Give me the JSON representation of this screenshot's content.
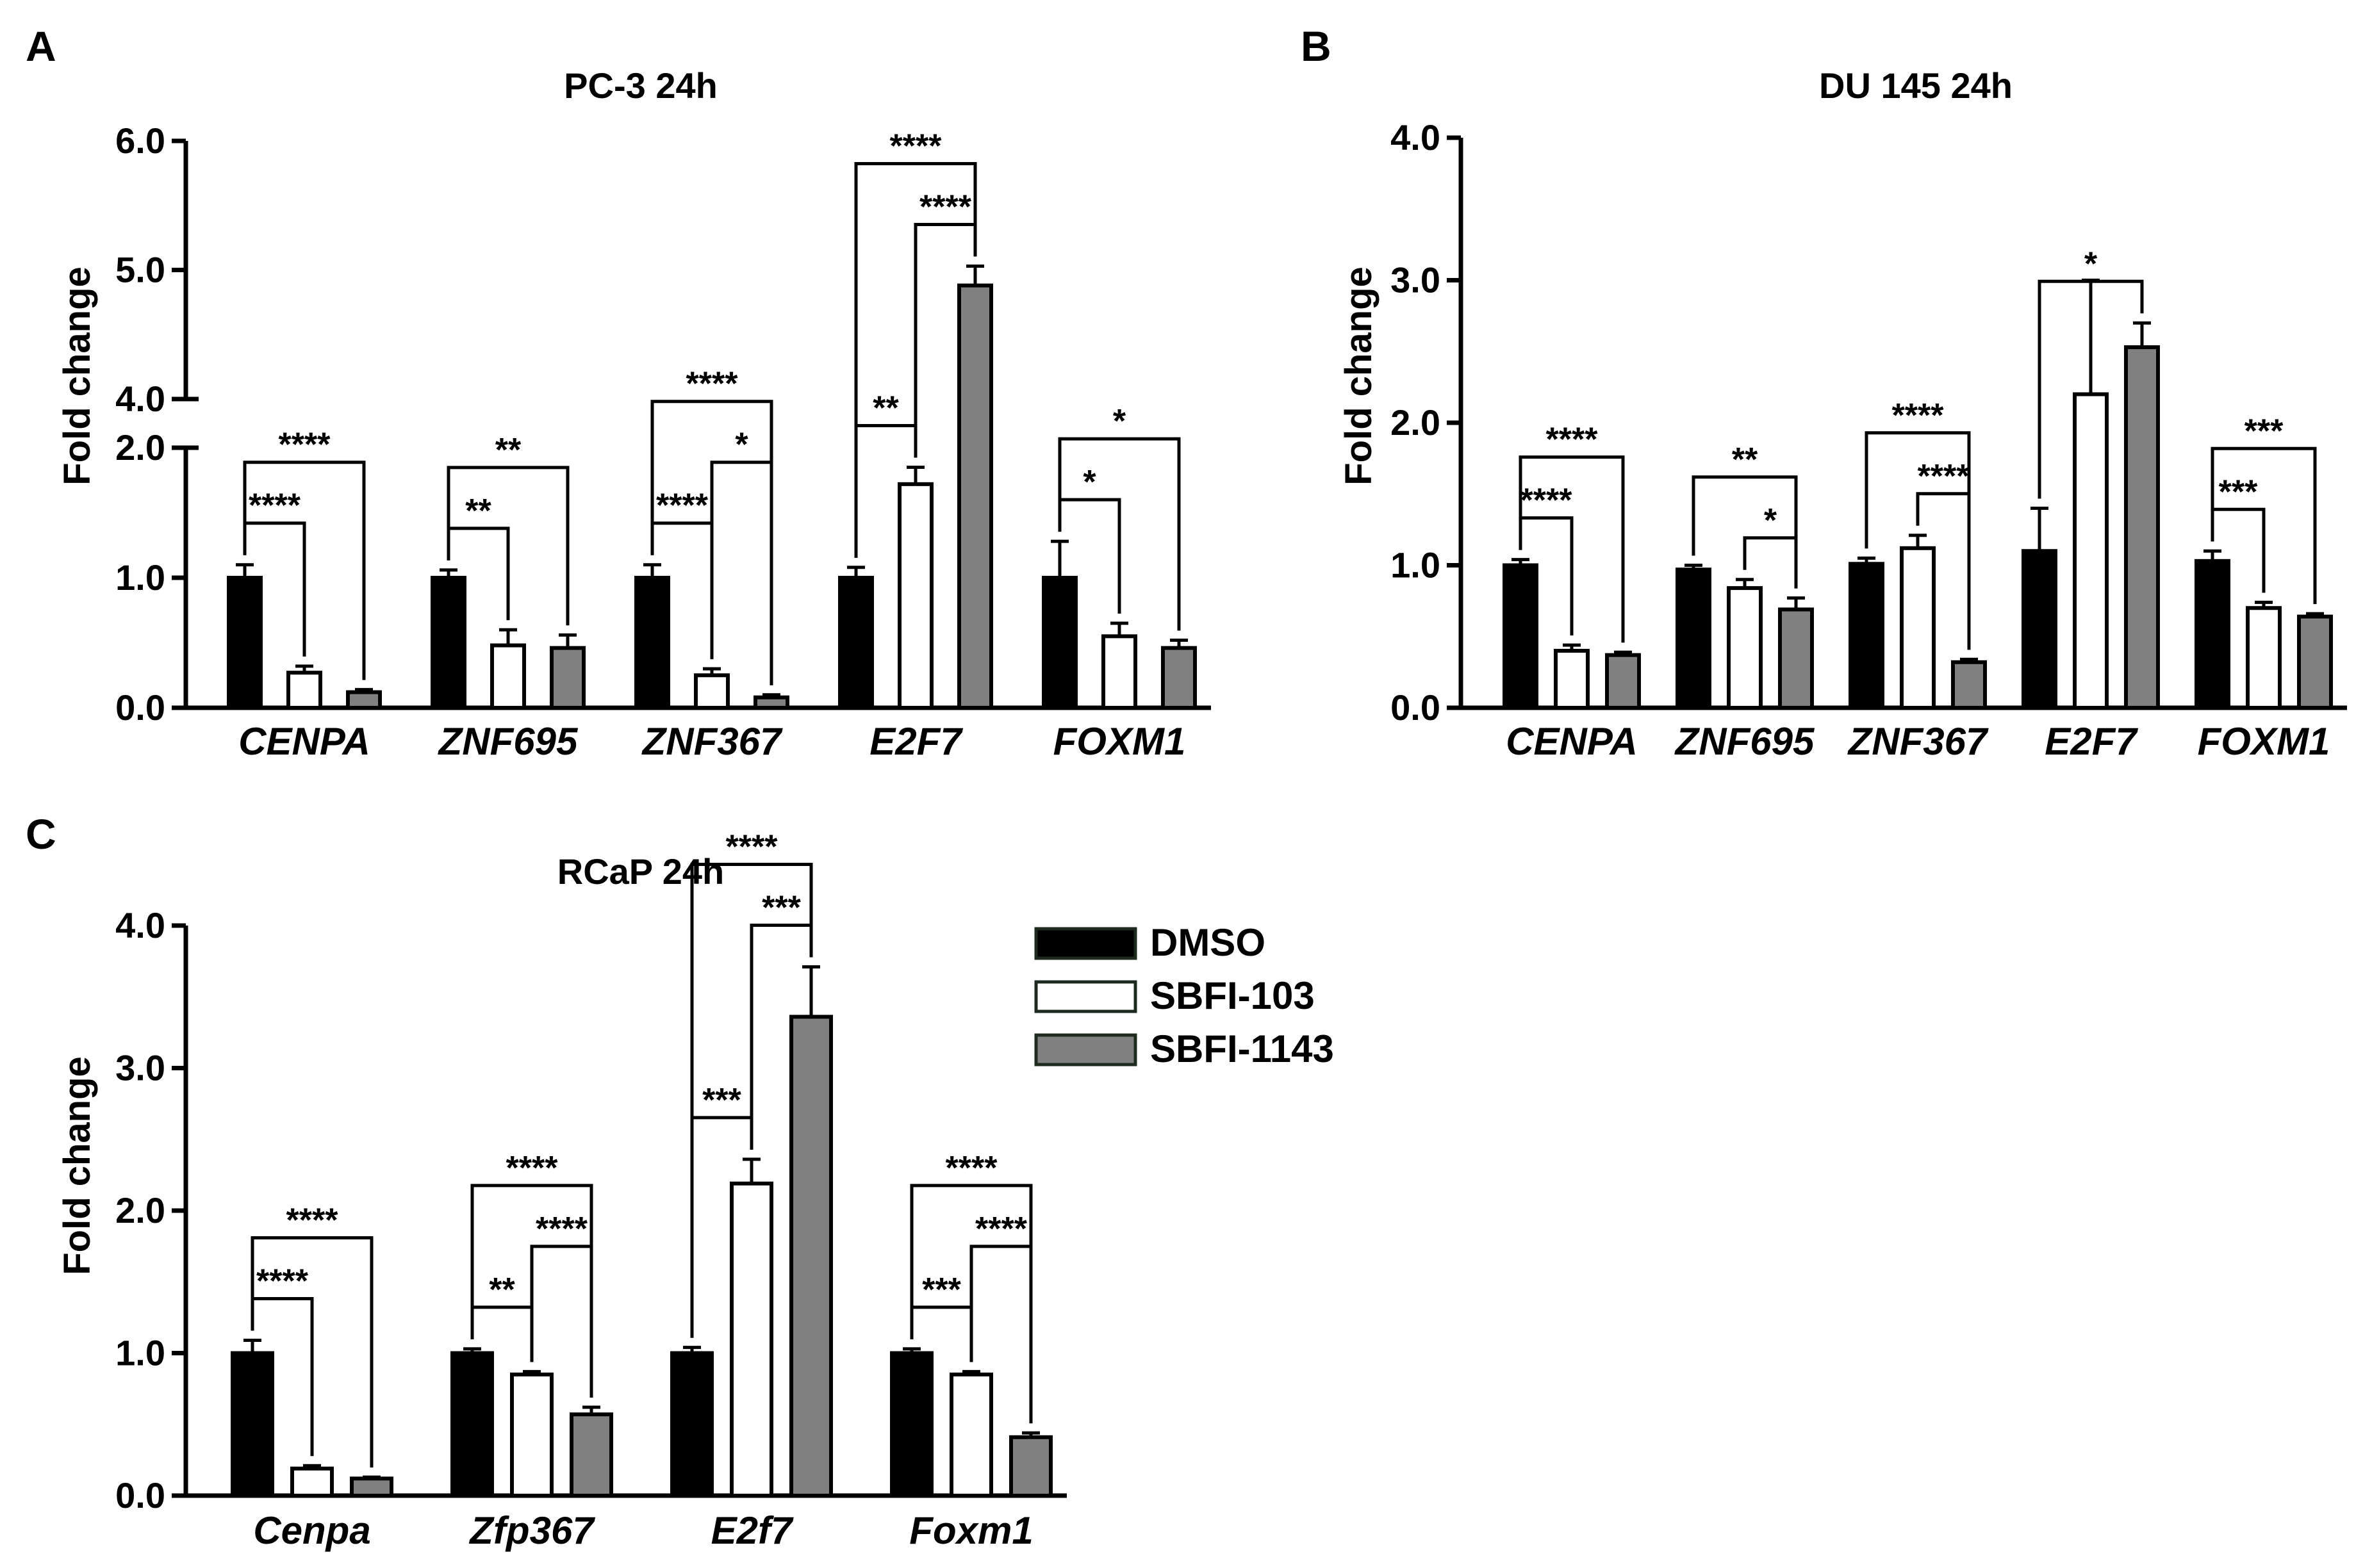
{
  "panels": [
    {
      "id": "A",
      "label": "A",
      "title": "PC-3 24h",
      "ylabel": "Fold change",
      "chart_type": "bar",
      "categories": [
        "CENPA",
        "ZNF695",
        "ZNF367",
        "E2F7",
        "FOXM1"
      ],
      "y_ticks": [
        "0.0",
        "1.0",
        "2.0",
        "4.0",
        "5.0",
        "6.0"
      ]
    },
    {
      "id": "B",
      "label": "B",
      "title": "DU 145 24h",
      "ylabel": "Fold change",
      "chart_type": "bar",
      "categories": [
        "CENPA",
        "ZNF695",
        "ZNF367",
        "E2F7",
        "FOXM1"
      ],
      "y_ticks": [
        "0.0",
        "1.0",
        "2.0",
        "3.0",
        "4.0"
      ]
    },
    {
      "id": "C",
      "label": "C",
      "title": "RCaP 24h",
      "ylabel": "Fold change",
      "chart_type": "bar",
      "categories": [
        "Cenpa",
        "Zfp367",
        "E2f7",
        "Foxm1"
      ],
      "y_ticks": [
        "0.0",
        "1.0",
        "2.0",
        "3.0",
        "4.0"
      ]
    }
  ],
  "legend": {
    "items": [
      {
        "label": "DMSO",
        "color": "#000000"
      },
      {
        "label": "SBFI-103",
        "color": "#ffffff"
      },
      {
        "label": "SBFI-1143",
        "color": "#808080"
      }
    ]
  },
  "colors": {
    "DMSO": "#000000",
    "SBFI-103": "#ffffff",
    "SBFI-1143": "#808080",
    "axis": "#000000"
  },
  "chart_data": [
    {
      "panel": "A",
      "type": "bar",
      "title": "PC-3 24h",
      "ylabel": "Fold change",
      "xlabel": "",
      "categories": [
        "CENPA",
        "ZNF695",
        "ZNF367",
        "E2F7",
        "FOXM1"
      ],
      "y_axis_break": {
        "from": 2.0,
        "to": 4.0
      },
      "ylim": [
        0,
        6
      ],
      "series": [
        {
          "name": "DMSO",
          "values": [
            1.0,
            1.0,
            1.0,
            1.0,
            1.0
          ],
          "errors": [
            0.1,
            0.06,
            0.1,
            0.08,
            0.28
          ]
        },
        {
          "name": "SBFI-103",
          "values": [
            0.27,
            0.48,
            0.25,
            1.72,
            0.55
          ],
          "errors": [
            0.05,
            0.12,
            0.05,
            0.13,
            0.1
          ]
        },
        {
          "name": "SBFI-1143",
          "values": [
            0.12,
            0.46,
            0.08,
            4.88,
            0.46
          ],
          "errors": [
            0.02,
            0.1,
            0.02,
            0.15,
            0.06
          ]
        }
      ],
      "significance": [
        {
          "category": "CENPA",
          "pair": [
            "DMSO",
            "SBFI-103"
          ],
          "label": "****"
        },
        {
          "category": "CENPA",
          "pair": [
            "DMSO",
            "SBFI-1143"
          ],
          "label": "****"
        },
        {
          "category": "ZNF695",
          "pair": [
            "DMSO",
            "SBFI-103"
          ],
          "label": "**"
        },
        {
          "category": "ZNF695",
          "pair": [
            "DMSO",
            "SBFI-1143"
          ],
          "label": "**"
        },
        {
          "category": "ZNF367",
          "pair": [
            "DMSO",
            "SBFI-103"
          ],
          "label": "****"
        },
        {
          "category": "ZNF367",
          "pair": [
            "DMSO",
            "SBFI-1143"
          ],
          "label": "****"
        },
        {
          "category": "ZNF367",
          "pair": [
            "SBFI-103",
            "SBFI-1143"
          ],
          "label": "*"
        },
        {
          "category": "E2F7",
          "pair": [
            "DMSO",
            "SBFI-103"
          ],
          "label": "**"
        },
        {
          "category": "E2F7",
          "pair": [
            "DMSO",
            "SBFI-1143"
          ],
          "label": "****"
        },
        {
          "category": "E2F7",
          "pair": [
            "SBFI-103",
            "SBFI-1143"
          ],
          "label": "****"
        },
        {
          "category": "FOXM1",
          "pair": [
            "DMSO",
            "SBFI-103"
          ],
          "label": "*"
        },
        {
          "category": "FOXM1",
          "pair": [
            "DMSO",
            "SBFI-1143"
          ],
          "label": "*"
        }
      ]
    },
    {
      "panel": "B",
      "type": "bar",
      "title": "DU 145 24h",
      "ylabel": "Fold change",
      "xlabel": "",
      "categories": [
        "CENPA",
        "ZNF695",
        "ZNF367",
        "E2F7",
        "FOXM1"
      ],
      "ylim": [
        0,
        4
      ],
      "series": [
        {
          "name": "DMSO",
          "values": [
            1.0,
            0.97,
            1.01,
            1.1,
            1.03
          ],
          "errors": [
            0.04,
            0.03,
            0.04,
            0.3,
            0.07
          ]
        },
        {
          "name": "SBFI-103",
          "values": [
            0.4,
            0.84,
            1.12,
            2.2,
            0.7
          ],
          "errors": [
            0.04,
            0.06,
            0.09,
            0.8,
            0.04
          ]
        },
        {
          "name": "SBFI-1143",
          "values": [
            0.37,
            0.69,
            0.32,
            2.53,
            0.64
          ],
          "errors": [
            0.02,
            0.08,
            0.02,
            0.17,
            0.02
          ]
        }
      ],
      "significance": [
        {
          "category": "CENPA",
          "pair": [
            "DMSO",
            "SBFI-103"
          ],
          "label": "****"
        },
        {
          "category": "CENPA",
          "pair": [
            "DMSO",
            "SBFI-1143"
          ],
          "label": "****"
        },
        {
          "category": "ZNF695",
          "pair": [
            "DMSO",
            "SBFI-1143"
          ],
          "label": "**"
        },
        {
          "category": "ZNF695",
          "pair": [
            "SBFI-103",
            "SBFI-1143"
          ],
          "label": "*"
        },
        {
          "category": "ZNF367",
          "pair": [
            "DMSO",
            "SBFI-1143"
          ],
          "label": "****"
        },
        {
          "category": "ZNF367",
          "pair": [
            "SBFI-103",
            "SBFI-1143"
          ],
          "label": "****"
        },
        {
          "category": "E2F7",
          "pair": [
            "DMSO",
            "SBFI-1143"
          ],
          "label": "*"
        },
        {
          "category": "FOXM1",
          "pair": [
            "DMSO",
            "SBFI-103"
          ],
          "label": "***"
        },
        {
          "category": "FOXM1",
          "pair": [
            "DMSO",
            "SBFI-1143"
          ],
          "label": "***"
        }
      ]
    },
    {
      "panel": "C",
      "type": "bar",
      "title": "RCaP 24h",
      "ylabel": "Fold change",
      "xlabel": "",
      "categories": [
        "Cenpa",
        "Zfp367",
        "E2f7",
        "Foxm1"
      ],
      "ylim": [
        0,
        4
      ],
      "series": [
        {
          "name": "DMSO",
          "values": [
            1.0,
            1.0,
            1.0,
            1.0
          ],
          "errors": [
            0.09,
            0.03,
            0.04,
            0.03
          ]
        },
        {
          "name": "SBFI-103",
          "values": [
            0.19,
            0.85,
            2.19,
            0.85
          ],
          "errors": [
            0.02,
            0.02,
            0.17,
            0.02
          ]
        },
        {
          "name": "SBFI-1143",
          "values": [
            0.12,
            0.57,
            3.36,
            0.41
          ],
          "errors": [
            0.01,
            0.05,
            0.35,
            0.03
          ]
        }
      ],
      "significance": [
        {
          "category": "Cenpa",
          "pair": [
            "DMSO",
            "SBFI-103"
          ],
          "label": "****"
        },
        {
          "category": "Cenpa",
          "pair": [
            "DMSO",
            "SBFI-1143"
          ],
          "label": "****"
        },
        {
          "category": "Zfp367",
          "pair": [
            "DMSO",
            "SBFI-103"
          ],
          "label": "**"
        },
        {
          "category": "Zfp367",
          "pair": [
            "DMSO",
            "SBFI-1143"
          ],
          "label": "****"
        },
        {
          "category": "Zfp367",
          "pair": [
            "SBFI-103",
            "SBFI-1143"
          ],
          "label": "****"
        },
        {
          "category": "E2f7",
          "pair": [
            "DMSO",
            "SBFI-103"
          ],
          "label": "***"
        },
        {
          "category": "E2f7",
          "pair": [
            "DMSO",
            "SBFI-1143"
          ],
          "label": "****"
        },
        {
          "category": "E2f7",
          "pair": [
            "SBFI-103",
            "SBFI-1143"
          ],
          "label": "***"
        },
        {
          "category": "Foxm1",
          "pair": [
            "DMSO",
            "SBFI-103"
          ],
          "label": "***"
        },
        {
          "category": "Foxm1",
          "pair": [
            "DMSO",
            "SBFI-1143"
          ],
          "label": "****"
        },
        {
          "category": "Foxm1",
          "pair": [
            "SBFI-103",
            "SBFI-1143"
          ],
          "label": "****"
        }
      ]
    }
  ]
}
